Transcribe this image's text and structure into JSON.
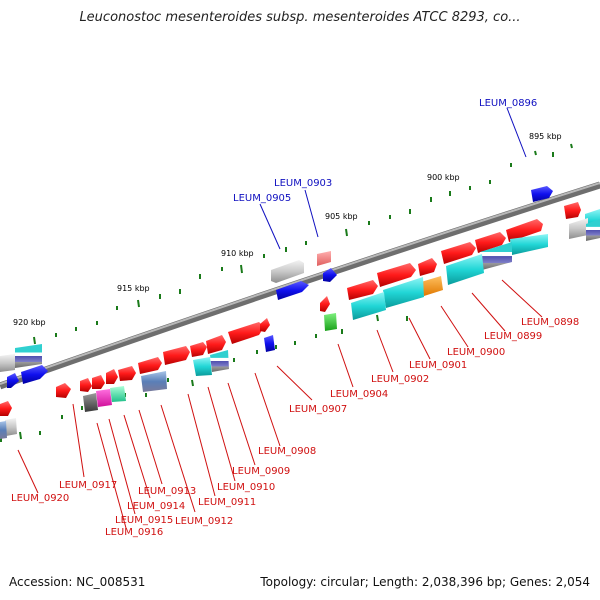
{
  "title": "Leuconostoc mesenteroides subsp. mesenteroides ATCC 8293, co...",
  "footer": {
    "accession": "Accession: NC_008531",
    "topology": "Topology: circular; Length: 2,038,396 bp; Genes: 2,054"
  },
  "colors": {
    "label_red": "#d01010",
    "label_blue": "#1010c0",
    "tick": "#1a7a1a",
    "backbone": "#7a7a7a"
  },
  "scale_labels": [
    "895 kbp",
    "900 kbp",
    "905 kbp",
    "910 kbp",
    "915 kbp",
    "920 kbp"
  ],
  "upper_labels": [
    "LEUM_0896",
    "LEUM_0903",
    "LEUM_0905"
  ],
  "lower_labels": [
    "LEUM_0898",
    "LEUM_0899",
    "LEUM_0900",
    "LEUM_0901",
    "LEUM_0902",
    "LEUM_0904",
    "LEUM_0907",
    "LEUM_0908",
    "LEUM_0909",
    "LEUM_0910",
    "LEUM_0911",
    "LEUM_0912",
    "LEUM_0913",
    "LEUM_0914",
    "LEUM_0915",
    "LEUM_0916",
    "LEUM_0917",
    "LEUM_0920"
  ]
}
